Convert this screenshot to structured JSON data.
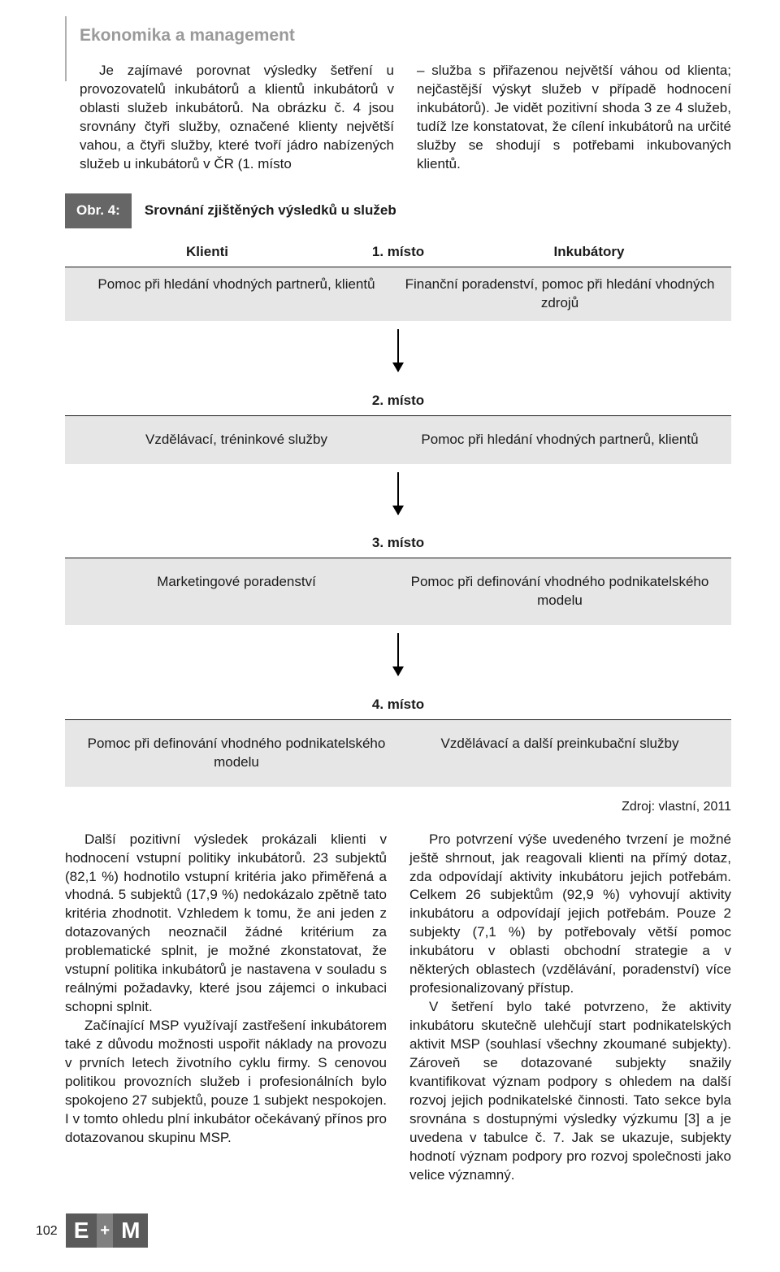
{
  "colors": {
    "text": "#1a1a1a",
    "muted": "#9a9a9a",
    "tag_bg": "#666666",
    "panel_bg": "#e6e6e6",
    "rule": "#1a1a1a",
    "logo_dark": "#5a5a5a",
    "logo_mid": "#808080",
    "vline": "#b0b0b0"
  },
  "section_title": "Ekonomika a management",
  "intro_left": "Je zajímavé porovnat výsledky šetření u provozovatelů inkubátorů a klientů inkubátorů v oblasti služeb inkubátorů. Na obrázku č. 4 jsou srovnány čtyři služby, označené klienty největší vahou, a čtyři služby, které tvoří jádro nabízených služeb u inkubátorů v ČR (1. místo",
  "intro_right": "– služba s přiřazenou největší váhou od klienta; nejčastější výskyt služeb v případě hodnocení inkubátorů). Je vidět pozitivní shoda 3 ze 4 služeb, tudíž lze konstatovat, že cílení inkubátorů na určité služby se shodují s potřebami inkubovaných klientů.",
  "figure": {
    "tag": "Obr. 4:",
    "title": "Srovnání zjištěných výsledků u služeb",
    "columns_left": "Klienti",
    "columns_right": "Inkubátory",
    "ranks": [
      {
        "rank": "1. místo",
        "left": "Pomoc při hledání vhodných partnerů, klientů",
        "right": "Finanční poradenství, pomoc při hledání vhodných zdrojů"
      },
      {
        "rank": "2. místo",
        "left": "Vzdělávací, tréninkové služby",
        "right": "Pomoc při hledání vhodných partnerů, klientů"
      },
      {
        "rank": "3. místo",
        "left": "Marketingové poradenství",
        "right": "Pomoc při definování vhodného podnikatelského modelu"
      },
      {
        "rank": "4. místo",
        "left": "Pomoc při definování vhodného podnikatelského modelu",
        "right": "Vzdělávací a další preinkubační služby"
      }
    ],
    "source": "Zdroj: vlastní, 2011"
  },
  "body_left_p1": "Další pozitivní výsledek prokázali klienti v hodnocení vstupní politiky inkubátorů. 23 subjektů (82,1 %) hodnotilo vstupní kritéria jako přiměřená a vhodná. 5 subjektů (17,9 %) nedokázalo zpětně tato kritéria zhodnotit. Vzhledem k tomu, že ani jeden z dotazovaných neoznačil žádné kritérium za problematické splnit, je možné zkonstatovat, že vstupní politika inkubátorů je nastavena v souladu s reálnými požadavky, které jsou zájemci o inkubaci schopni splnit.",
  "body_left_p2": "Začínající MSP využívají zastřešení inkubátorem také z důvodu možnosti uspořit náklady na provozu v prvních letech životního cyklu firmy. S cenovou politikou provozních služeb i profesionálních bylo spokojeno 27 subjektů, pouze 1 subjekt nespokojen. I v tomto ohledu plní inkubátor očekávaný přínos pro dotazovanou skupinu MSP.",
  "body_right_p1": "Pro potvrzení výše uvedeného tvrzení je možné ještě shrnout, jak reagovali klienti na přímý dotaz, zda odpovídají aktivity inkubátoru jejich potřebám. Celkem 26 subjektům (92,9 %) vyhovují aktivity inkubátoru a odpovídají jejich potřebám. Pouze 2 subjekty (7,1 %) by potřebovaly větší pomoc inkubátoru v oblasti obchodní strategie a v některých oblastech (vzdělávání, poradenství) více profesionalizovaný přístup.",
  "body_right_p2": "V šetření bylo také potvrzeno, že aktivity inkubátoru skutečně ulehčují start podnikatelských aktivit MSP (souhlasí všechny zkoumané subjekty). Zároveň se dotazované subjekty snažily kvantifikovat význam podpory s ohledem na další rozvoj jejich podnikatelské činnosti. Tato sekce byla srovnána s dostupnými výsledky výzkumu [3] a je uvedena v tabulce č. 7. Jak se ukazuje, subjekty hodnotí význam podpory pro rozvoj společnosti jako velice významný.",
  "page_number": "102",
  "logo": {
    "e": "E",
    "plus": "+",
    "m": "M"
  }
}
